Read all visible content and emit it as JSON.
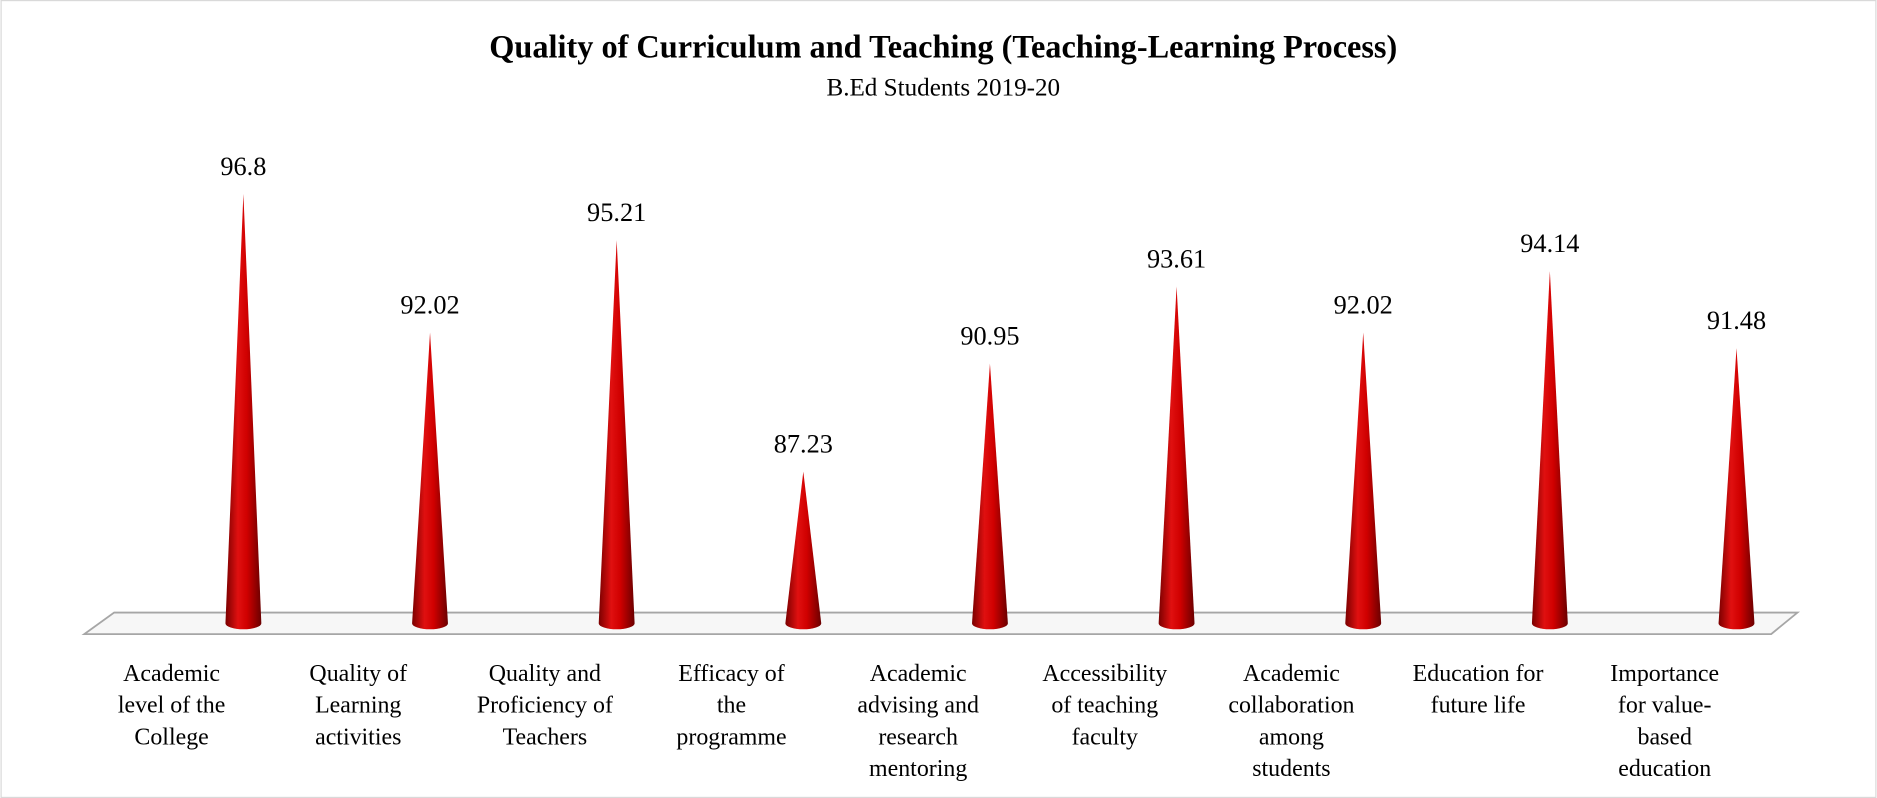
{
  "chart_data": {
    "type": "cone",
    "title": "Quality of Curriculum and Teaching (Teaching-Learning Process)",
    "subtitle": "B.Ed Students 2019-20",
    "categories": [
      "Academic level of the College",
      "Quality of Learning activities",
      "Quality and Proficiency of Teachers",
      "Efficacy of the programme",
      "Academic advising and research mentoring",
      "Accessibility of teaching faculty",
      "Academic collaboration among students",
      "Education for future life",
      "Importance for value-based education"
    ],
    "values": [
      96.8,
      92.02,
      95.21,
      87.23,
      90.95,
      93.61,
      92.02,
      94.14,
      91.48
    ],
    "color": "#c00000",
    "ylim": [
      82,
      98
    ]
  }
}
